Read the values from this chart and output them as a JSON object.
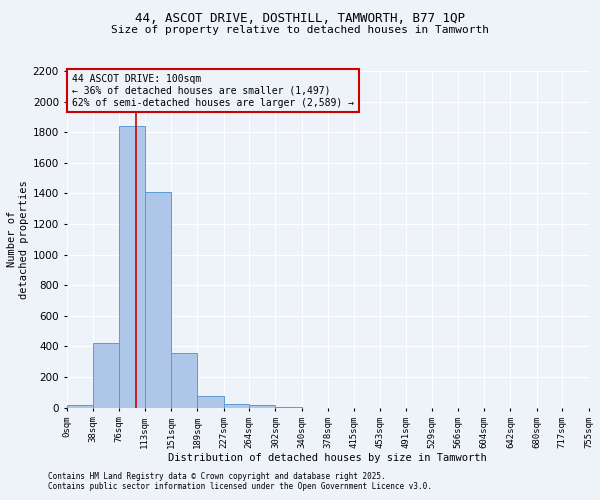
{
  "title_line1": "44, ASCOT DRIVE, DOSTHILL, TAMWORTH, B77 1QP",
  "title_line2": "Size of property relative to detached houses in Tamworth",
  "xlabel": "Distribution of detached houses by size in Tamworth",
  "ylabel": "Number of\ndetached properties",
  "footnote1": "Contains HM Land Registry data © Crown copyright and database right 2025.",
  "footnote2": "Contains public sector information licensed under the Open Government Licence v3.0.",
  "annotation_title": "44 ASCOT DRIVE: 100sqm",
  "annotation_line1": "← 36% of detached houses are smaller (1,497)",
  "annotation_line2": "62% of semi-detached houses are larger (2,589) →",
  "property_size": 100,
  "bin_edges": [
    0,
    38,
    76,
    113,
    151,
    189,
    227,
    264,
    302,
    340,
    378,
    415,
    453,
    491,
    529,
    566,
    604,
    642,
    680,
    717,
    755
  ],
  "bar_values": [
    15,
    425,
    1840,
    1410,
    355,
    75,
    25,
    20,
    5,
    0,
    0,
    0,
    0,
    0,
    0,
    0,
    0,
    0,
    0,
    0
  ],
  "bar_color": "#aec6e8",
  "bar_edge_color": "#5b9bd5",
  "marker_color": "#cc0000",
  "ylim": [
    0,
    2200
  ],
  "yticks": [
    0,
    200,
    400,
    600,
    800,
    1000,
    1200,
    1400,
    1600,
    1800,
    2000,
    2200
  ],
  "bg_color": "#eef2f9",
  "grid_color": "#ffffff",
  "annotation_box_color": "#cc0000"
}
